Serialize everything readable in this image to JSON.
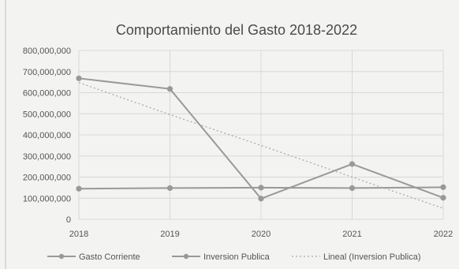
{
  "chart_data": {
    "type": "line",
    "title": "Comportamiento del Gasto 2018-2022",
    "x": [
      "2018",
      "2019",
      "2020",
      "2021",
      "2022"
    ],
    "y_ticks": [
      "800,000,000",
      "700,000,000",
      "600,000,000",
      "500,000,000",
      "400,000,000",
      "300,000,000",
      "200,000,000",
      "100,000,000",
      "0"
    ],
    "ylim": [
      0,
      800000000
    ],
    "grid": true,
    "legend_position": "bottom",
    "series": [
      {
        "name": "Gasto Corriente",
        "values": [
          145000000,
          148000000,
          150000000,
          148000000,
          152000000
        ],
        "color": "#999999",
        "style": "solid"
      },
      {
        "name": "Inversion Publica",
        "values": [
          668000000,
          618000000,
          98000000,
          262000000,
          102000000
        ],
        "color": "#999999",
        "style": "solid"
      },
      {
        "name": "Lineal (Inversion Publica)",
        "values": [
          648000000,
          496000000,
          350000000,
          200000000,
          52000000
        ],
        "color": "#aaaaaa",
        "style": "dotted"
      }
    ]
  }
}
